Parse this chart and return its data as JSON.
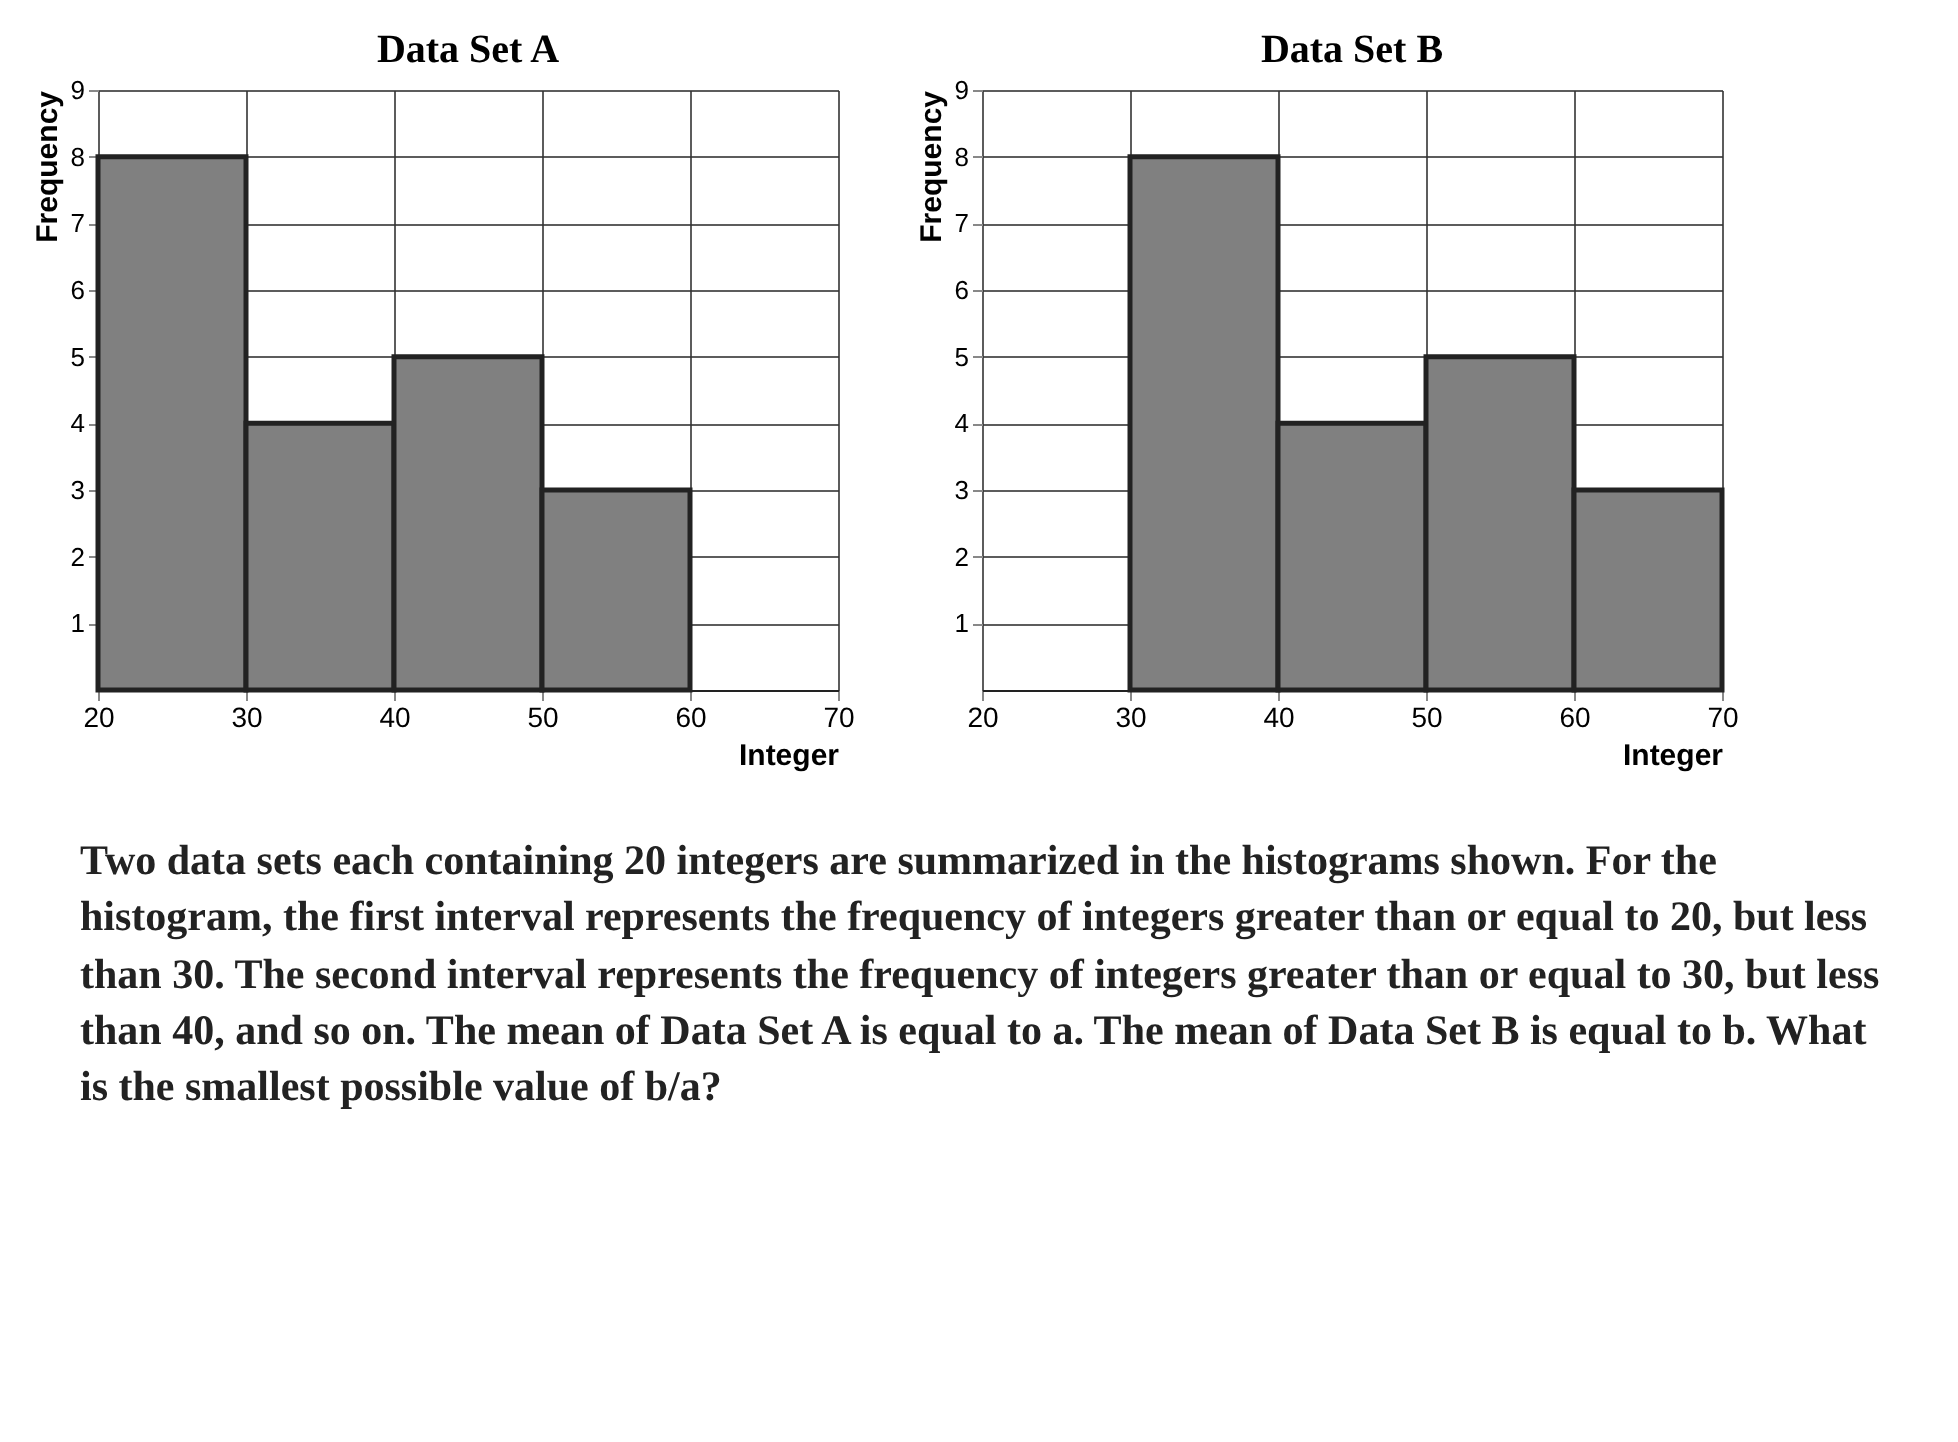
{
  "chart_data": [
    {
      "type": "histogram",
      "title": "Data Set A",
      "xlabel": "Integer",
      "ylabel": "Frequency",
      "bins": [
        20,
        30,
        40,
        50,
        60
      ],
      "values": [
        8,
        4,
        5,
        3
      ],
      "color": "#808080",
      "xlim": [
        20,
        70
      ],
      "xticks": [
        20,
        30,
        40,
        50,
        60,
        70
      ],
      "ylim": [
        0,
        9
      ],
      "yticks": [
        1,
        2,
        3,
        4,
        5,
        6,
        7,
        8,
        9
      ],
      "grid": true,
      "annotations": [
        "Two data sets each containing 20 integers are summarized in the histograms shown. For the histogram, the first interval represents the frequency of integers greater than or equal to 20, but less than 30. The second interval represents the frequency of integers greater than or equal to 30, but less than 40, and so on. The mean of Data Set A is equal to a. The mean of Data Set B is equal to b. What is the smallest possible value of b/a?"
      ]
    },
    {
      "type": "histogram",
      "title": "Data Set B",
      "xlabel": "Integer",
      "ylabel": "Frequency",
      "bins": [
        30,
        40,
        50,
        60,
        70
      ],
      "values": [
        8,
        4,
        5,
        3
      ],
      "color": "#808080",
      "xlim": [
        20,
        70
      ],
      "xticks": [
        20,
        30,
        40,
        50,
        60,
        70
      ],
      "ylim": [
        0,
        9
      ],
      "yticks": [
        1,
        2,
        3,
        4,
        5,
        6,
        7,
        8,
        9
      ],
      "grid": true
    }
  ]
}
